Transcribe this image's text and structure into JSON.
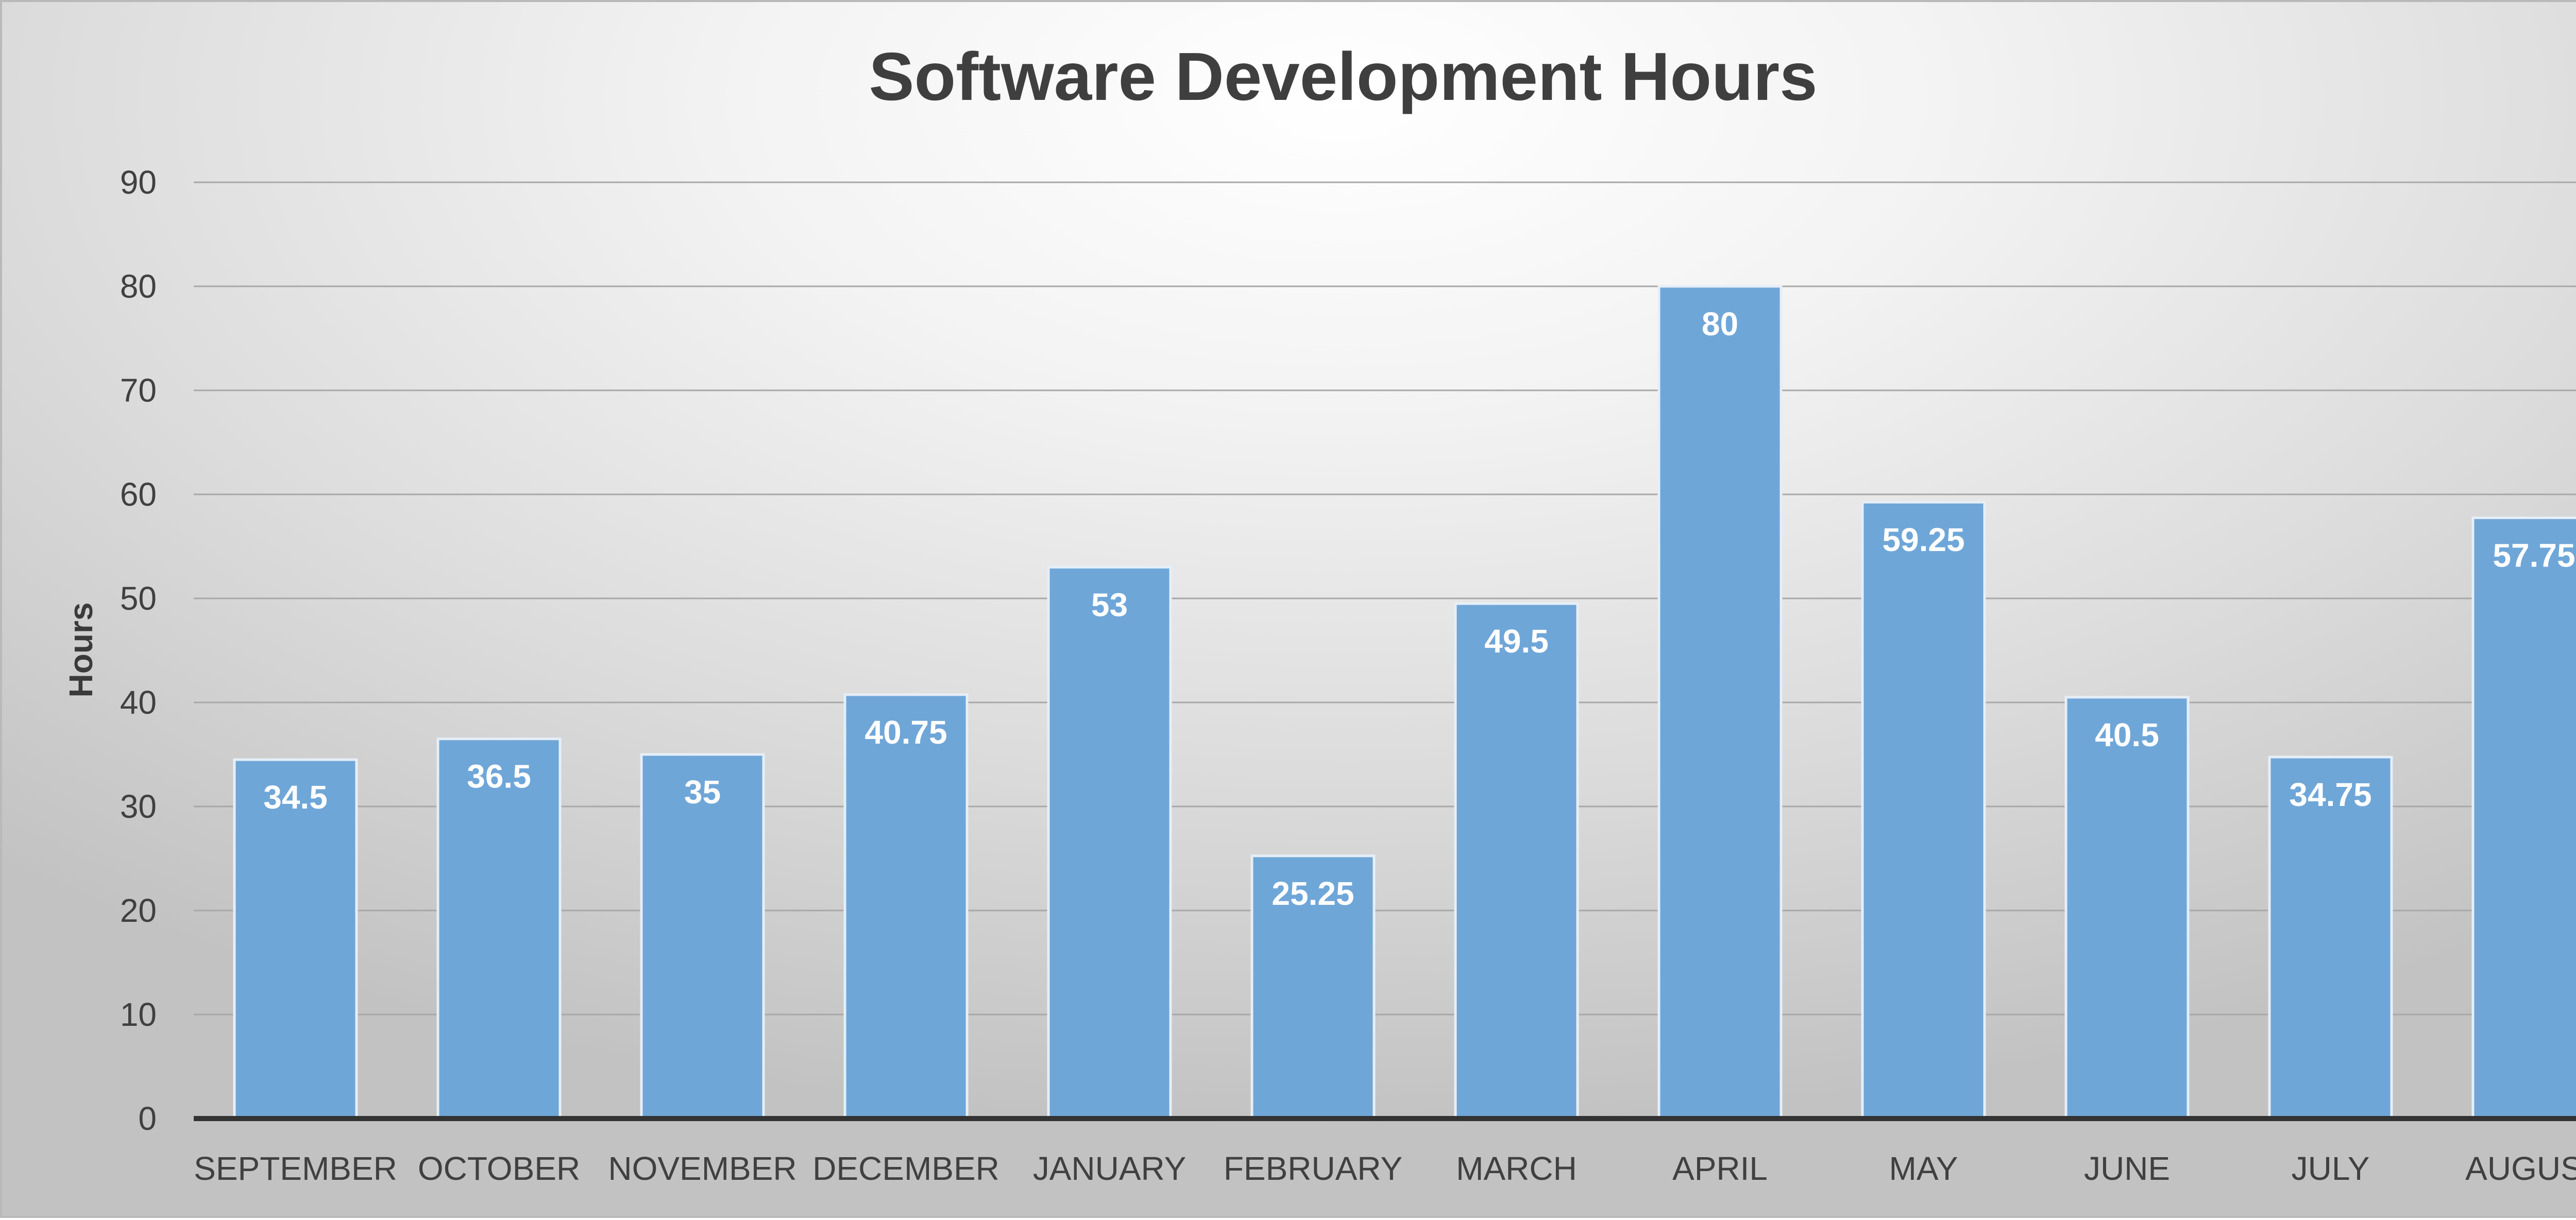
{
  "chart_data": {
    "type": "bar",
    "title": "Software Development Hours",
    "xlabel": "",
    "ylabel": "Hours",
    "categories": [
      "SEPTEMBER",
      "OCTOBER",
      "NOVEMBER",
      "DECEMBER",
      "JANUARY",
      "FEBRUARY",
      "MARCH",
      "APRIL",
      "MAY",
      "JUNE",
      "JULY",
      "AUGUST"
    ],
    "values": [
      34.5,
      36.5,
      35,
      40.75,
      53,
      25.25,
      49.5,
      80,
      59.25,
      40.5,
      34.75,
      57.75
    ],
    "data_labels": [
      "34.5",
      "36.5",
      "35",
      "40.75",
      "53",
      "25.25",
      "49.5",
      "80",
      "59.25",
      "40.5",
      "34.75",
      "57.75"
    ],
    "ylim": [
      0,
      90
    ],
    "yticks": [
      0,
      10,
      20,
      30,
      40,
      50,
      60,
      70,
      80,
      90
    ],
    "ytick_labels": [
      "0",
      "10",
      "20",
      "30",
      "40",
      "50",
      "60",
      "70",
      "80",
      "90"
    ],
    "grid": true,
    "legend": "none",
    "colors": {
      "bar": "#6fa6d8",
      "bar_edge": "#e6eef7",
      "gridline": "#a8a8a8",
      "axis": "#333333",
      "data_label": "#ffffff",
      "title": "#3f3f3f"
    }
  }
}
